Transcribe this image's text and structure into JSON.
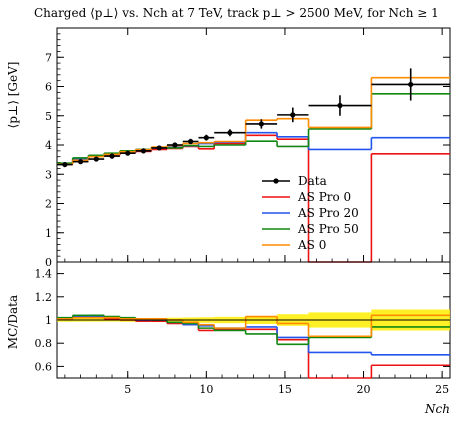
{
  "chart_data": {
    "type": "line",
    "title": "Charged ⟨p⊥⟩ vs. Nch at 7 TeV, track p⊥ > 2500 MeV, for Nch ≥ 1",
    "xlabel": "Nch",
    "ylabel": "⟨p⊥⟩ [GeV]",
    "ratio_ylabel": "MC/Data",
    "xlim": [
      0.5,
      25.5
    ],
    "ylim": [
      0,
      8
    ],
    "ratio_ylim": [
      0.5,
      1.5
    ],
    "x_ticks": [
      "5",
      "10",
      "15",
      "20",
      "25"
    ],
    "y_ticks": [
      "0",
      "1",
      "2",
      "3",
      "4",
      "5",
      "6",
      "7"
    ],
    "ratio_y_ticks": [
      "0.6",
      "0.8",
      "1",
      "1.2",
      "1.4"
    ],
    "grid": false,
    "legend_position": "lower-right",
    "bins": [
      [
        0.5,
        1.5
      ],
      [
        1.5,
        2.5
      ],
      [
        2.5,
        3.5
      ],
      [
        3.5,
        4.5
      ],
      [
        4.5,
        5.5
      ],
      [
        5.5,
        6.5
      ],
      [
        6.5,
        7.5
      ],
      [
        7.5,
        8.5
      ],
      [
        8.5,
        9.5
      ],
      [
        9.5,
        10.5
      ],
      [
        10.5,
        12.5
      ],
      [
        12.5,
        14.5
      ],
      [
        14.5,
        16.5
      ],
      [
        16.5,
        20.5
      ],
      [
        20.5,
        25.5
      ]
    ],
    "data": {
      "name": "Data",
      "color": "#000000",
      "x": [
        1,
        2,
        3,
        4,
        5,
        6,
        7,
        8,
        9,
        10,
        11.5,
        13.5,
        15.5,
        18.5,
        23
      ],
      "y": [
        3.33,
        3.43,
        3.52,
        3.62,
        3.72,
        3.8,
        3.9,
        4.0,
        4.12,
        4.25,
        4.42,
        4.72,
        5.03,
        5.35,
        6.07
      ],
      "err": [
        0.05,
        0.05,
        0.05,
        0.05,
        0.06,
        0.06,
        0.07,
        0.08,
        0.09,
        0.1,
        0.12,
        0.16,
        0.25,
        0.35,
        0.55
      ]
    },
    "series": [
      {
        "name": "AS Pro 0",
        "color": "#ee1111",
        "values": [
          3.35,
          3.5,
          3.6,
          3.65,
          3.73,
          3.78,
          3.85,
          3.88,
          3.95,
          3.87,
          4.05,
          4.33,
          4.2,
          0.0,
          3.7
        ],
        "ratio": [
          1.01,
          1.02,
          1.02,
          1.01,
          1.0,
          0.99,
          0.99,
          0.97,
          0.96,
          0.91,
          0.92,
          0.92,
          0.83,
          0.0,
          0.61
        ]
      },
      {
        "name": "AS Pro 20",
        "color": "#2255ee",
        "values": [
          3.36,
          3.52,
          3.62,
          3.68,
          3.75,
          3.82,
          3.9,
          3.92,
          3.97,
          4.05,
          4.1,
          4.42,
          4.28,
          3.85,
          4.25
        ],
        "ratio": [
          1.01,
          1.03,
          1.03,
          1.02,
          1.01,
          1.0,
          1.0,
          0.98,
          0.96,
          0.95,
          0.93,
          0.94,
          0.85,
          0.72,
          0.7
        ]
      },
      {
        "name": "AS Pro 50",
        "color": "#118811",
        "values": [
          3.38,
          3.56,
          3.65,
          3.72,
          3.8,
          3.85,
          3.92,
          3.9,
          3.98,
          3.95,
          4.0,
          4.13,
          3.95,
          4.55,
          5.75
        ],
        "ratio": [
          1.02,
          1.04,
          1.04,
          1.03,
          1.02,
          1.01,
          1.0,
          0.98,
          0.97,
          0.93,
          0.91,
          0.88,
          0.79,
          0.85,
          0.94
        ]
      },
      {
        "name": "AS 0",
        "color": "#ff8c00",
        "values": [
          3.34,
          3.48,
          3.6,
          3.68,
          3.77,
          3.84,
          3.93,
          3.98,
          4.05,
          4.08,
          4.12,
          4.85,
          4.9,
          4.6,
          6.3
        ],
        "ratio": [
          1.01,
          1.02,
          1.02,
          1.02,
          1.01,
          1.01,
          1.01,
          1.0,
          0.98,
          0.96,
          0.93,
          1.03,
          0.97,
          0.86,
          1.04
        ]
      }
    ]
  }
}
